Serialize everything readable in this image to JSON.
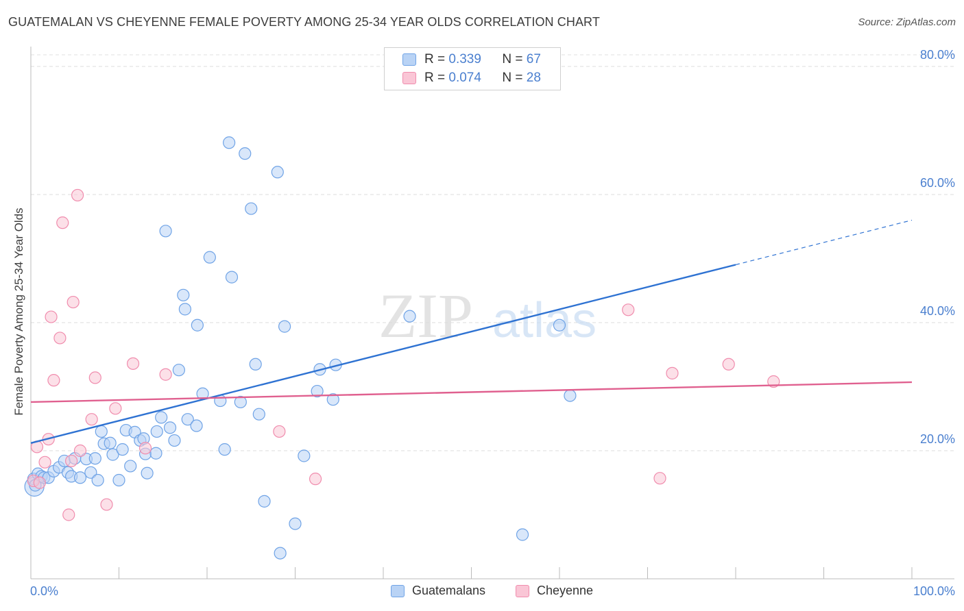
{
  "title": "GUATEMALAN VS CHEYENNE FEMALE POVERTY AMONG 25-34 YEAR OLDS CORRELATION CHART",
  "source": "Source: ZipAtlas.com",
  "watermark": {
    "zip": "ZIP",
    "atlas": "atlas"
  },
  "legend": {
    "rows": [
      {
        "r_label": "R =",
        "r_value": "0.339",
        "n_label": "N =",
        "n_value": "67"
      },
      {
        "r_label": "R =",
        "r_value": "0.074",
        "n_label": "N =",
        "n_value": "28"
      }
    ]
  },
  "chart_data": {
    "type": "scatter",
    "title": "GUATEMALAN VS CHEYENNE FEMALE POVERTY AMONG 25-34 YEAR OLDS CORRELATION CHART",
    "xlabel": "",
    "ylabel": "Female Poverty Among 25-34 Year Olds",
    "xlim": [
      0,
      100
    ],
    "ylim": [
      0,
      80
    ],
    "x_tick_labels": [
      "0.0%",
      "100.0%"
    ],
    "y_ticks": [
      20,
      40,
      60,
      80
    ],
    "y_tick_labels": [
      "20.0%",
      "40.0%",
      "60.0%",
      "80.0%"
    ],
    "grid": true,
    "legend_position": "top-center",
    "series": [
      {
        "name": "Guatemalans",
        "color": "#6fa3e6",
        "fill": "#b9d3f5",
        "line_color": "#2e72d2",
        "trend": {
          "x0": 0,
          "y0": 21.2,
          "x1": 100,
          "y1": 56.0,
          "solid_until": 80
        },
        "points": [
          [
            0.3,
            15.6
          ],
          [
            0.8,
            16.4
          ],
          [
            1.2,
            16.0
          ],
          [
            1.5,
            15.8
          ],
          [
            2.0,
            15.8
          ],
          [
            2.6,
            16.8
          ],
          [
            3.2,
            17.4
          ],
          [
            3.8,
            18.4
          ],
          [
            4.2,
            16.6
          ],
          [
            4.6,
            16.0
          ],
          [
            5.0,
            18.8
          ],
          [
            5.6,
            15.8
          ],
          [
            6.3,
            18.7
          ],
          [
            6.8,
            16.6
          ],
          [
            7.3,
            18.8
          ],
          [
            7.6,
            15.4
          ],
          [
            8.0,
            23.0
          ],
          [
            8.3,
            21.1
          ],
          [
            9.0,
            21.2
          ],
          [
            9.3,
            19.4
          ],
          [
            10.0,
            15.4
          ],
          [
            10.4,
            20.2
          ],
          [
            10.8,
            23.2
          ],
          [
            11.3,
            17.6
          ],
          [
            11.8,
            22.9
          ],
          [
            12.4,
            21.6
          ],
          [
            12.8,
            21.9
          ],
          [
            13.0,
            19.5
          ],
          [
            13.2,
            16.5
          ],
          [
            14.2,
            19.6
          ],
          [
            14.3,
            23.0
          ],
          [
            14.8,
            25.2
          ],
          [
            15.3,
            54.3
          ],
          [
            15.8,
            23.6
          ],
          [
            16.3,
            21.6
          ],
          [
            16.8,
            32.6
          ],
          [
            17.3,
            44.3
          ],
          [
            17.5,
            42.1
          ],
          [
            17.8,
            24.9
          ],
          [
            18.8,
            23.9
          ],
          [
            18.9,
            39.6
          ],
          [
            19.5,
            28.9
          ],
          [
            20.3,
            50.2
          ],
          [
            21.5,
            27.8
          ],
          [
            22.0,
            20.2
          ],
          [
            22.5,
            68.1
          ],
          [
            22.8,
            47.1
          ],
          [
            23.8,
            27.6
          ],
          [
            24.3,
            66.4
          ],
          [
            25.0,
            57.8
          ],
          [
            25.5,
            33.5
          ],
          [
            25.9,
            25.7
          ],
          [
            26.5,
            12.1
          ],
          [
            28.0,
            63.5
          ],
          [
            28.3,
            4.0
          ],
          [
            28.8,
            39.4
          ],
          [
            30.0,
            8.6
          ],
          [
            31.0,
            19.2
          ],
          [
            32.5,
            29.3
          ],
          [
            32.8,
            32.7
          ],
          [
            34.3,
            28.0
          ],
          [
            34.6,
            33.4
          ],
          [
            43.0,
            41.0
          ],
          [
            55.8,
            6.9
          ],
          [
            60.0,
            39.6
          ],
          [
            61.2,
            28.6
          ],
          [
            0.5,
            14.6
          ]
        ]
      },
      {
        "name": "Cheyenne",
        "color": "#f08cad",
        "fill": "#fac6d6",
        "line_color": "#e0608f",
        "trend": {
          "x0": 0,
          "y0": 27.6,
          "x1": 100,
          "y1": 30.7
        },
        "points": [
          [
            0.3,
            15.3
          ],
          [
            0.7,
            20.6
          ],
          [
            1.0,
            15.0
          ],
          [
            1.6,
            18.2
          ],
          [
            2.0,
            21.8
          ],
          [
            2.3,
            40.9
          ],
          [
            2.6,
            31.0
          ],
          [
            3.3,
            37.6
          ],
          [
            3.6,
            55.6
          ],
          [
            4.3,
            10.0
          ],
          [
            4.6,
            18.4
          ],
          [
            4.8,
            43.2
          ],
          [
            5.3,
            59.9
          ],
          [
            5.6,
            20.0
          ],
          [
            6.9,
            24.9
          ],
          [
            7.3,
            31.4
          ],
          [
            8.6,
            11.6
          ],
          [
            9.6,
            26.6
          ],
          [
            11.6,
            33.6
          ],
          [
            13.0,
            20.4
          ],
          [
            15.3,
            31.9
          ],
          [
            28.2,
            23.0
          ],
          [
            32.3,
            15.6
          ],
          [
            67.8,
            42.0
          ],
          [
            71.4,
            15.7
          ],
          [
            72.8,
            32.1
          ],
          [
            79.2,
            33.5
          ],
          [
            84.3,
            30.8
          ]
        ]
      }
    ]
  },
  "bottom_legend": {
    "items": [
      "Guatemalans",
      "Cheyenne"
    ]
  }
}
